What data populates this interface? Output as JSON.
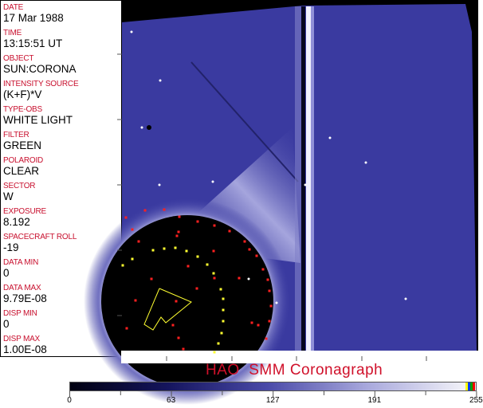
{
  "header_fields": [
    {
      "label": "DATE",
      "value": "17 Mar 1988"
    },
    {
      "label": "TIME",
      "value": "13:15:51 UT"
    },
    {
      "label": "OBJECT",
      "value": "SUN:CORONA"
    },
    {
      "label": "INTENSITY SOURCE",
      "value": "(K+F)*V"
    },
    {
      "label": "TYPE-OBS",
      "value": "WHITE LIGHT"
    },
    {
      "label": "FILTER",
      "value": "GREEN"
    },
    {
      "label": "POLAROID",
      "value": "CLEAR"
    },
    {
      "label": "SECTOR",
      "value": "W"
    },
    {
      "label": "EXPOSURE",
      "value": "8.192"
    },
    {
      "label": "SPACECRAFT ROLL",
      "value": "-19"
    },
    {
      "label": "DATA MIN",
      "value": "0"
    },
    {
      "label": "DATA MAX",
      "value": "9.79E-08"
    },
    {
      "label": "DISP MIN",
      "value": "0"
    },
    {
      "label": "DISP MAX",
      "value": "1.00E-08"
    }
  ],
  "title": "HAO  SMM Coronagraph",
  "colorbar": {
    "ticks": [
      "0",
      "63",
      "127",
      "191",
      "255"
    ],
    "colors": [
      "#000010",
      "#15155e",
      "#4a4aa8",
      "#a8a8dc",
      "#f2f2f8"
    ],
    "end_colors": [
      "#ffff00",
      "#0040ff",
      "#00a000",
      "#ff0000"
    ]
  },
  "image_colors": {
    "sky": "#3a3aa0",
    "occulter": "#000000",
    "red_marker": "#ff2020",
    "yellow_marker": "#ffff30"
  }
}
